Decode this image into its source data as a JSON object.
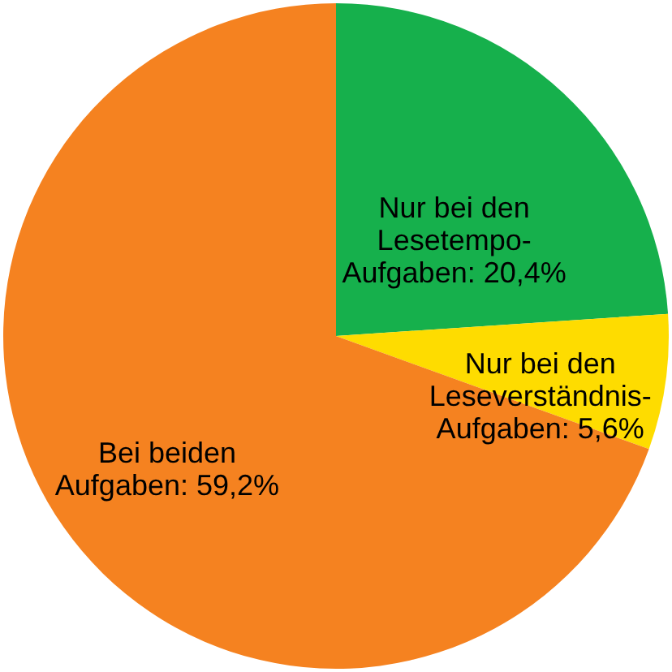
{
  "chart_data": {
    "type": "pie",
    "categories": [
      "Nur bei den Lesetempo-Aufgaben",
      "Nur bei den Leseverständnis-Aufgaben",
      "Bei beiden Aufgaben"
    ],
    "values": [
      20.4,
      5.6,
      59.2
    ],
    "value_labels": [
      "20,4%",
      "5,6%",
      "59,2%"
    ],
    "colors": [
      "#16b04c",
      "#fedc00",
      "#f58220"
    ]
  }
}
